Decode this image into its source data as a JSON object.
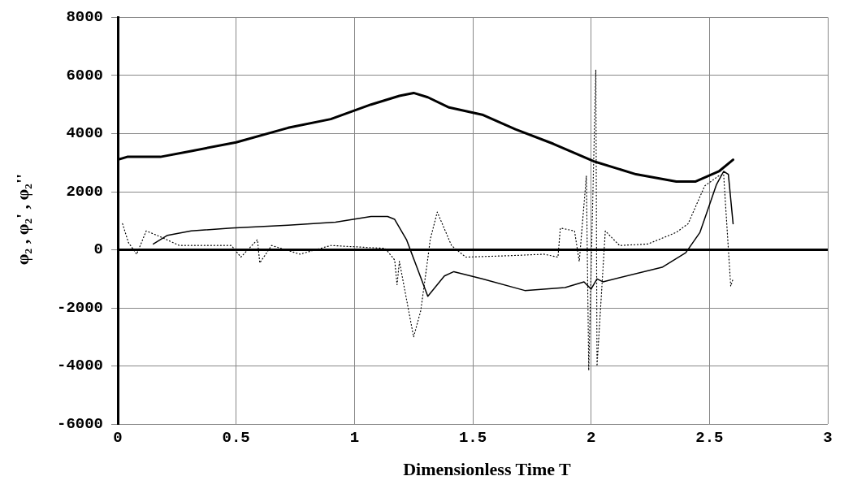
{
  "chart_data": {
    "type": "line",
    "xlabel": "Dimensionless Time T",
    "ylabel": "φ₂ , φ₂' , φ₂''",
    "xlim": [
      0,
      3
    ],
    "xticks": [
      0,
      0.5,
      1,
      1.5,
      2,
      2.5,
      3
    ],
    "ylim": [
      -6000,
      8000
    ],
    "yticks": [
      -6000,
      -4000,
      -2000,
      0,
      2000,
      4000,
      6000,
      8000
    ],
    "grid": true,
    "legend": false,
    "marker": "none",
    "ref_lines": [
      {
        "axis": "y",
        "value": 0,
        "color": "#000000"
      }
    ],
    "series": [
      {
        "color": "#000000",
        "line_style": "solid",
        "x": [
          0,
          0.04,
          0.18,
          0.31,
          0.5,
          0.72,
          0.9,
          1.07,
          1.19,
          1.25,
          1.31,
          1.4,
          1.54,
          1.68,
          1.84,
          2.01,
          2.19,
          2.36,
          2.44,
          2.54,
          2.6
        ],
        "values": [
          3100,
          3200,
          3200,
          3400,
          3700,
          4200,
          4500,
          5000,
          5300,
          5400,
          5250,
          4900,
          4650,
          4150,
          3650,
          3050,
          2600,
          2350,
          2350,
          2700,
          3100
        ]
      },
      {
        "color": "#000000",
        "line_style": "solid",
        "x": [
          0.15,
          0.21,
          0.31,
          0.48,
          0.72,
          0.92,
          1.07,
          1.14,
          1.17,
          1.22,
          1.31,
          1.38,
          1.42,
          1.54,
          1.72,
          1.89,
          1.97,
          2,
          2.025,
          2.05,
          2.3,
          2.4,
          2.46,
          2.53,
          2.56,
          2.58,
          2.6
        ],
        "values": [
          200,
          500,
          650,
          750,
          850,
          950,
          1150,
          1150,
          1050,
          350,
          -1600,
          -900,
          -750,
          -1000,
          -1400,
          -1300,
          -1100,
          -1350,
          -1000,
          -1100,
          -600,
          -100,
          600,
          2250,
          2700,
          2600,
          900
        ]
      },
      {
        "color": "#000000",
        "line_style": "dotted",
        "x": [
          0.02,
          0.045,
          0.08,
          0.12,
          0.18,
          0.26,
          0.48,
          0.52,
          0.59,
          0.6,
          0.65,
          0.77,
          0.9,
          1.13,
          1.17,
          1.18,
          1.19,
          1.25,
          1.28,
          1.31,
          1.32,
          1.35,
          1.41,
          1.47,
          1.66,
          1.8,
          1.86,
          1.87,
          1.93,
          1.95,
          1.98,
          1.99,
          2.02,
          2.025,
          2.06,
          2.12,
          2.24,
          2.36,
          2.41,
          2.48,
          2.54,
          2.56,
          2.59,
          2.6
        ],
        "values": [
          900,
          250,
          -150,
          650,
          450,
          150,
          150,
          -250,
          350,
          -450,
          150,
          -150,
          150,
          50,
          -350,
          -1200,
          -400,
          -3000,
          -2100,
          -300,
          350,
          1300,
          150,
          -250,
          -200,
          -150,
          -250,
          750,
          650,
          -400,
          2550,
          -4150,
          6200,
          -4000,
          650,
          150,
          200,
          600,
          900,
          2200,
          2550,
          2600,
          -1250,
          -1000
        ]
      }
    ]
  }
}
